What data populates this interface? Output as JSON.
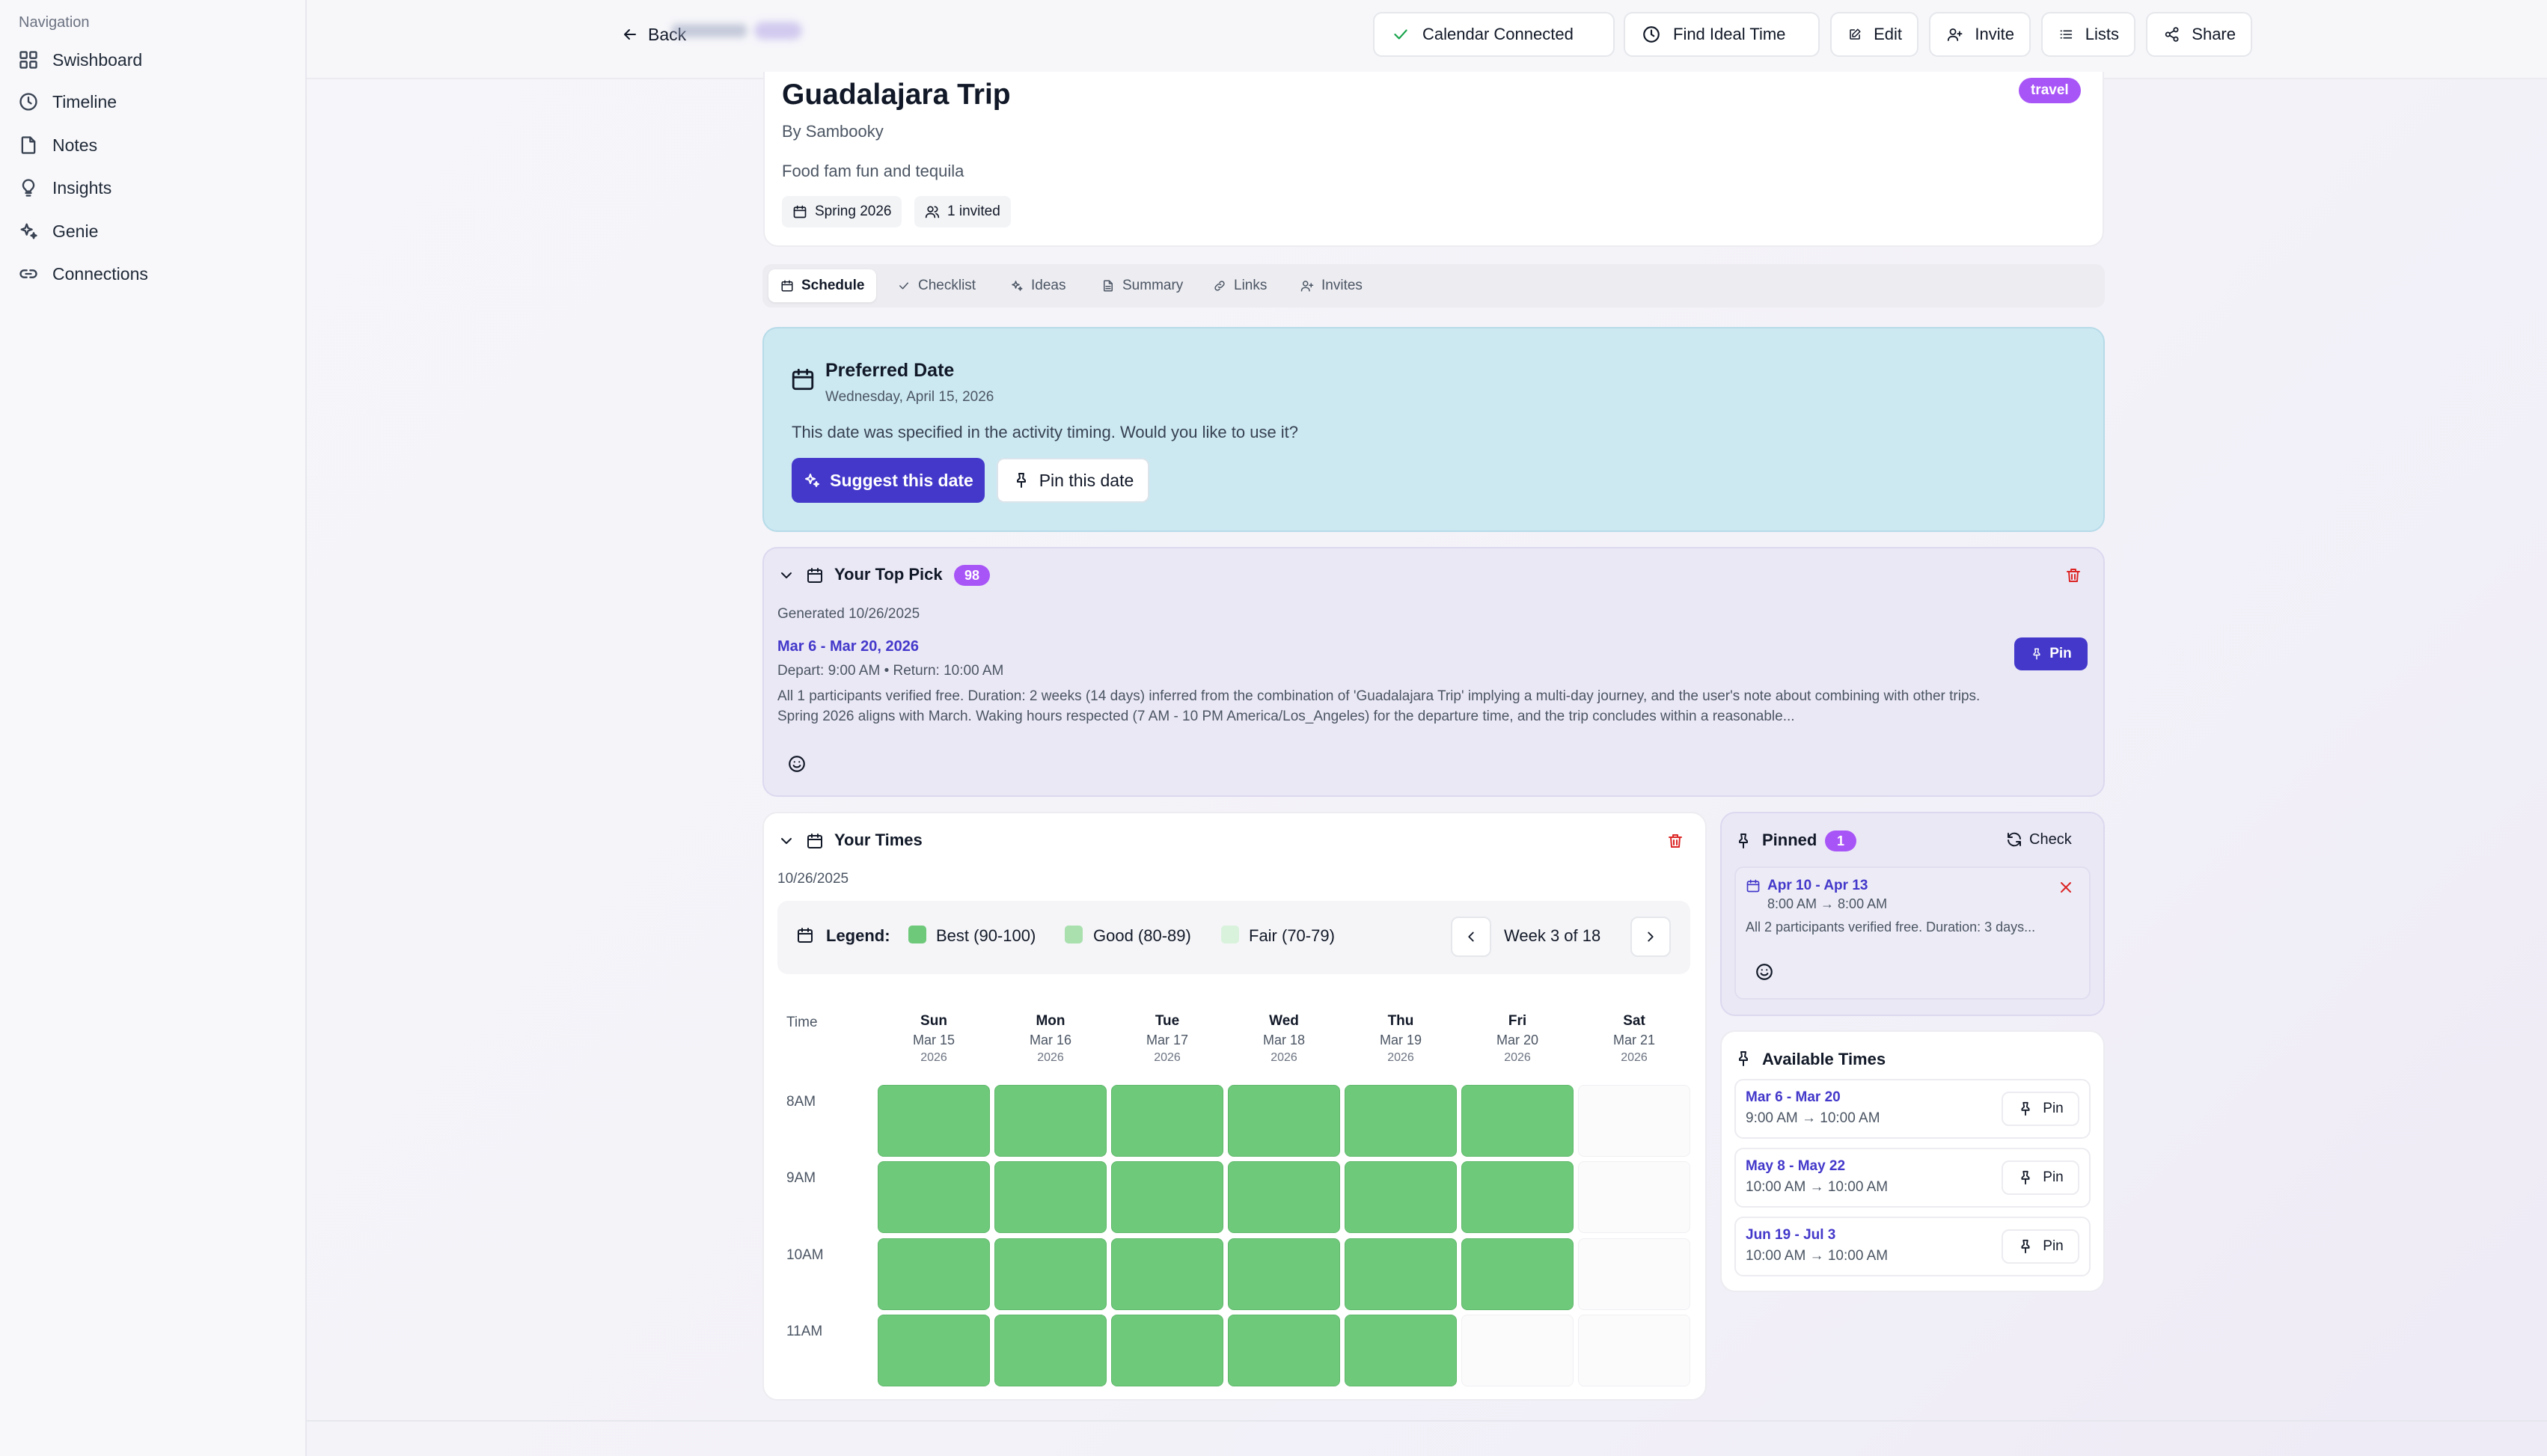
{
  "sidebar": {
    "heading": "Navigation",
    "items": [
      {
        "label": "Swishboard",
        "icon": "grid-icon"
      },
      {
        "label": "Timeline",
        "icon": "clock-icon"
      },
      {
        "label": "Notes",
        "icon": "file-icon"
      },
      {
        "label": "Insights",
        "icon": "lightbulb-icon"
      },
      {
        "label": "Genie",
        "icon": "sparkles-icon"
      },
      {
        "label": "Connections",
        "icon": "link-icon"
      }
    ]
  },
  "topbar": {
    "back_label": "Back",
    "calendar_connected": "Calendar Connected",
    "find_ideal_time": "Find Ideal Time",
    "edit": "Edit",
    "invite": "Invite",
    "lists": "Lists",
    "share": "Share"
  },
  "activity": {
    "title": "Guadalajara Trip",
    "author": "By Sambooky",
    "description": "Food fam fun and tequila",
    "season": "Spring 2026",
    "invited": "1 invited",
    "category_badge": "travel"
  },
  "tabs": [
    "Schedule",
    "Checklist",
    "Ideas",
    "Summary",
    "Links",
    "Invites"
  ],
  "active_tab": "Schedule",
  "preferred": {
    "title": "Preferred Date",
    "date": "Wednesday, April 15, 2026",
    "message": "This date was specified in the activity timing. Would you like to use it?",
    "suggest_label": "Suggest this date",
    "pin_label": "Pin this date"
  },
  "top_pick": {
    "title": "Your Top Pick",
    "score": "98",
    "generated": "Generated 10/26/2025",
    "range": "Mar 6 - Mar 20, 2026",
    "times": "Depart: 9:00 AM • Return: 10:00 AM",
    "description": "All 1 participants verified free. Duration: 2 weeks (14 days) inferred from the combination of 'Guadalajara Trip' implying a multi-day journey, and the user's note about combining with other trips. Spring 2026 aligns with March. Waking hours respected (7 AM - 10 PM America/Los_Angeles) for the departure time, and the trip concludes within a reasonable...",
    "pin_label": "Pin"
  },
  "your_times": {
    "title": "Your Times",
    "date": "10/26/2025",
    "legend_label": "Legend:",
    "legend": [
      {
        "label": "Best (90-100)",
        "color": "#6fc97a"
      },
      {
        "label": "Good (80-89)",
        "color": "#a9e0ae"
      },
      {
        "label": "Fair (70-79)",
        "color": "#d9f2dc"
      }
    ],
    "week_label": "Week 3 of 18",
    "time_header": "Time",
    "days": [
      {
        "day": "Sun",
        "date": "Mar 15",
        "year": "2026"
      },
      {
        "day": "Mon",
        "date": "Mar 16",
        "year": "2026"
      },
      {
        "day": "Tue",
        "date": "Mar 17",
        "year": "2026"
      },
      {
        "day": "Wed",
        "date": "Mar 18",
        "year": "2026"
      },
      {
        "day": "Thu",
        "date": "Mar 19",
        "year": "2026"
      },
      {
        "day": "Fri",
        "date": "Mar 20",
        "year": "2026"
      },
      {
        "day": "Sat",
        "date": "Mar 21",
        "year": "2026"
      }
    ],
    "rows": [
      {
        "label": "8AM",
        "cells": [
          "best",
          "best",
          "best",
          "best",
          "best",
          "best",
          "empty"
        ]
      },
      {
        "label": "9AM",
        "cells": [
          "best",
          "best",
          "best",
          "best",
          "best",
          "best",
          "empty"
        ]
      },
      {
        "label": "10AM",
        "cells": [
          "best",
          "best",
          "best",
          "best",
          "best",
          "best",
          "empty"
        ]
      },
      {
        "label": "11AM",
        "cells": [
          "best",
          "best",
          "best",
          "best",
          "best",
          "empty",
          "empty"
        ]
      }
    ]
  },
  "pinned": {
    "title": "Pinned",
    "count": "1",
    "check_label": "Check",
    "item": {
      "range": "Apr 10 - Apr 13",
      "time": "8:00 AM → 8:00 AM",
      "description": "All 2 participants verified free. Duration: 3 days..."
    }
  },
  "available": {
    "title": "Available Times",
    "pin_label": "Pin",
    "items": [
      {
        "range": "Mar 6 - Mar 20",
        "time": "9:00 AM → 10:00 AM"
      },
      {
        "range": "May 8 - May 22",
        "time": "10:00 AM → 10:00 AM"
      },
      {
        "range": "Jun 19 - Jul 3",
        "time": "10:00 AM → 10:00 AM"
      }
    ]
  },
  "colors": {
    "accent": "#4338ca",
    "badge": "#a855f7",
    "best": "#6fc97a",
    "delete": "#dc2626"
  }
}
